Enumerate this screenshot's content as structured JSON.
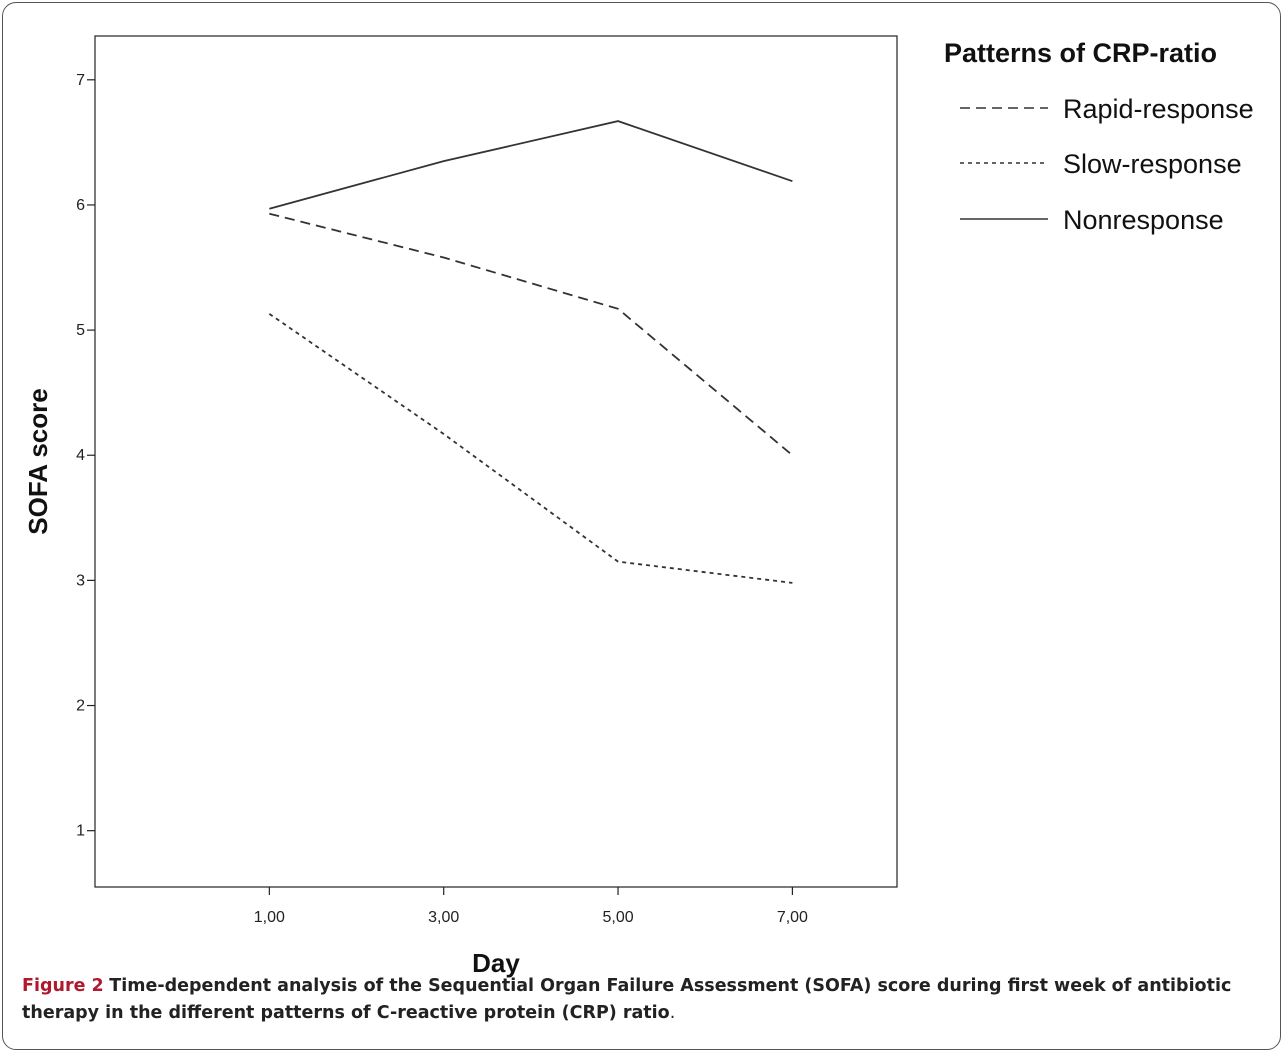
{
  "chart_data": {
    "type": "line",
    "xlabel": "Day",
    "ylabel": "SOFA score",
    "x": [
      1,
      3,
      5,
      7
    ],
    "x_tick_labels": [
      "1,00",
      "3,00",
      "5,00",
      "7,00"
    ],
    "xlim": [
      -1,
      8.2
    ],
    "ylim": [
      0.55,
      7.35
    ],
    "y_ticks": [
      1,
      2,
      3,
      4,
      5,
      6,
      7
    ],
    "y_tick_labels": [
      "1",
      "2",
      "3",
      "4",
      "5",
      "6",
      "7"
    ],
    "grid": false,
    "legend_title": "Patterns of CRP-ratio",
    "legend_position": "right",
    "series": [
      {
        "name": "Rapid-response",
        "values": [
          5.93,
          5.58,
          5.17,
          4.0
        ],
        "style": "dashed"
      },
      {
        "name": "Slow-response",
        "values": [
          5.13,
          4.17,
          3.15,
          2.98
        ],
        "style": "dotted"
      },
      {
        "name": "Nonresponse",
        "values": [
          5.97,
          6.35,
          6.67,
          6.19
        ],
        "style": "solid"
      }
    ]
  },
  "caption": {
    "label": "Figure 2",
    "text": "Time-dependent analysis of the Sequential Organ Failure Assessment (SOFA) score during first week of antibiotic therapy in the different patterns of C-reactive protein (CRP) ratio",
    "end": "."
  },
  "colors": {
    "line": "#333333",
    "caption_label": "#b0182d"
  }
}
